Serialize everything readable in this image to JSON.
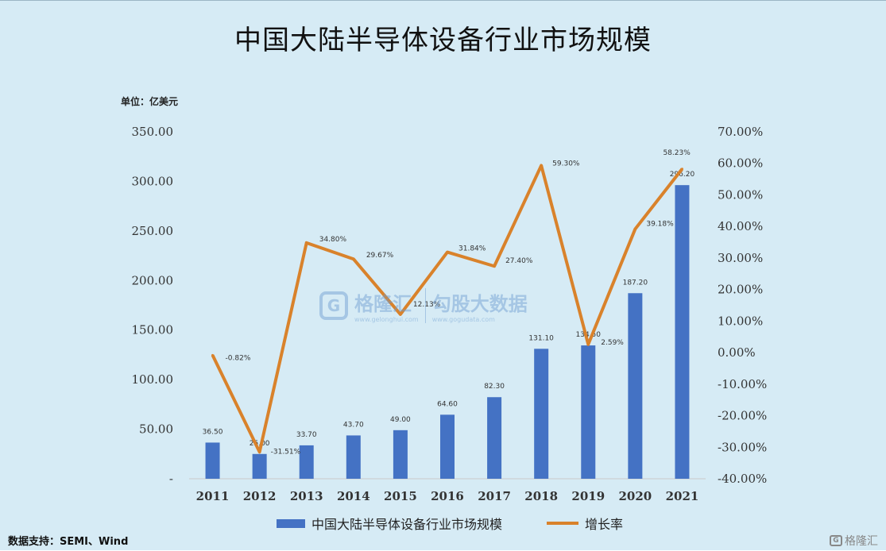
{
  "header": {
    "title": "中国大陆半导体设备行业市场规模"
  },
  "unit_label": "单位：亿美元",
  "source": "数据支持：SEMI、Wind",
  "watermark": {
    "brand": "格隆汇",
    "brand_url": "www.gelonghui.com",
    "partner": "勾股大数据",
    "partner_url": "www.gogudata.com"
  },
  "logo": {
    "text": "格隆汇"
  },
  "colors": {
    "bar": "#4472c4",
    "line": "#d9822b",
    "background": "#d6ebf5"
  },
  "chart_data": {
    "type": "bar",
    "categories": [
      "2011",
      "2012",
      "2013",
      "2014",
      "2015",
      "2016",
      "2017",
      "2018",
      "2019",
      "2020",
      "2021"
    ],
    "series": [
      {
        "name": "中国大陆半导体设备行业市场规模",
        "type": "bar",
        "axis": "left",
        "values": [
          36.5,
          25.0,
          33.7,
          43.7,
          49.0,
          64.6,
          82.3,
          131.1,
          134.5,
          187.2,
          296.2
        ],
        "labels": [
          "36.50",
          "25.00",
          "33.70",
          "43.70",
          "49.00",
          "64.60",
          "82.30",
          "131.10",
          "134.50",
          "187.20",
          "296.20"
        ]
      },
      {
        "name": "增长率",
        "type": "line",
        "axis": "right",
        "values": [
          -0.82,
          -31.51,
          34.8,
          29.67,
          12.13,
          31.84,
          27.4,
          59.3,
          2.59,
          39.18,
          58.23
        ],
        "labels": [
          "-0.82%",
          "-31.51%",
          "34.80%",
          "29.67%",
          "12.13%",
          "31.84%",
          "27.40%",
          "59.30%",
          "2.59%",
          "39.18%",
          "58.23%"
        ]
      }
    ],
    "left_axis": {
      "ylim": [
        0,
        350
      ],
      "ticks": [
        "-",
        "50.00",
        "100.00",
        "150.00",
        "200.00",
        "250.00",
        "300.00",
        "350.00"
      ]
    },
    "right_axis": {
      "ylim": [
        -40,
        70
      ],
      "ticks": [
        "-40.00%",
        "-30.00%",
        "-20.00%",
        "-10.00%",
        "0.00%",
        "10.00%",
        "20.00%",
        "30.00%",
        "40.00%",
        "50.00%",
        "60.00%",
        "70.00%"
      ]
    },
    "legend": "bottom",
    "grid": false
  }
}
